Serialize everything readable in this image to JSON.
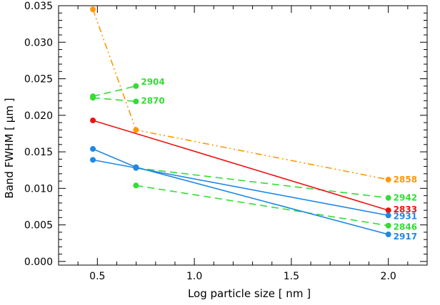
{
  "chart_data": {
    "type": "line",
    "title": "",
    "xlabel": "Log particle size [ nm ]",
    "ylabel": "Band FWHM [ μm ]",
    "xlim": [
      0.3,
      2.2
    ],
    "ylim": [
      -0.0005,
      0.035
    ],
    "grid": false,
    "xticks": [
      0.5,
      1.0,
      1.5,
      2.0
    ],
    "xtick_labels": [
      "0.5",
      "1.0",
      "1.5",
      "2.0"
    ],
    "yticks": [
      0.0,
      0.005,
      0.01,
      0.015,
      0.02,
      0.025,
      0.03,
      0.035
    ],
    "ytick_labels": [
      "0.000",
      "0.005",
      "0.010",
      "0.015",
      "0.020",
      "0.025",
      "0.030",
      "0.035"
    ],
    "series": [
      {
        "name": "2858",
        "color": "#ff9900",
        "dash": "dash-dot-dot",
        "x": [
          0.477,
          0.699,
          2.0
        ],
        "y": [
          0.0345,
          0.018,
          0.0112
        ]
      },
      {
        "name": "2904",
        "color": "#33dd33",
        "dash": "dash",
        "x": [
          0.477,
          0.699
        ],
        "y": [
          0.0226,
          0.024
        ]
      },
      {
        "name": "2870",
        "color": "#33dd33",
        "dash": "dash",
        "x": [
          0.477,
          0.699
        ],
        "y": [
          0.0224,
          0.0219
        ]
      },
      {
        "name": "2942",
        "color": "#33dd33",
        "dash": "dash",
        "x": [
          0.699,
          2.0
        ],
        "y": [
          0.0128,
          0.0087
        ]
      },
      {
        "name": "2846",
        "color": "#33dd33",
        "dash": "dash",
        "x": [
          0.699,
          2.0
        ],
        "y": [
          0.0104,
          0.0049
        ]
      },
      {
        "name": "2833",
        "color": "#ee1111",
        "dash": "solid",
        "x": [
          0.477,
          2.0
        ],
        "y": [
          0.0193,
          0.007
        ]
      },
      {
        "name": "2931",
        "color": "#1e88e5",
        "dash": "solid",
        "x": [
          0.477,
          0.699,
          2.0
        ],
        "y": [
          0.0139,
          0.0128,
          0.0063
        ]
      },
      {
        "name": "2917",
        "color": "#1e88e5",
        "dash": "solid",
        "x": [
          0.477,
          0.699,
          2.0
        ],
        "y": [
          0.0154,
          0.0129,
          0.0037
        ]
      }
    ]
  }
}
